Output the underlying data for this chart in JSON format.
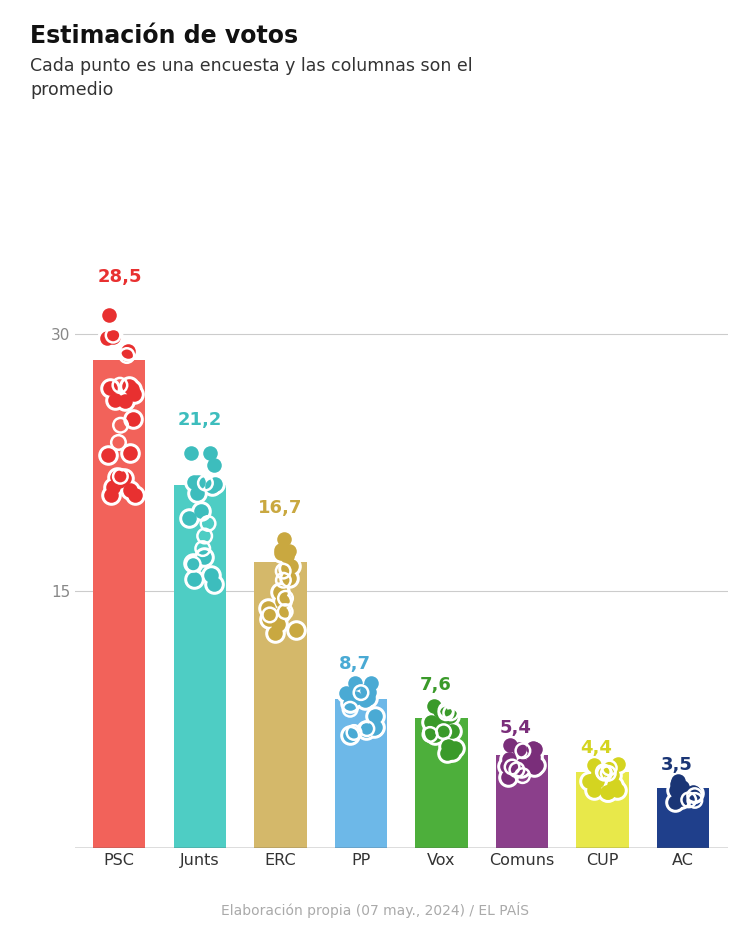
{
  "title": "Estimación de votos",
  "subtitle": "Cada punto es una encuesta y las columnas son el\npromedio",
  "footer": "Elaboración propia (07 may., 2024) / EL PAÍS",
  "categories": [
    "PSC",
    "Junts",
    "ERC",
    "PP",
    "Vox",
    "Comuns",
    "CUP",
    "AC"
  ],
  "values": [
    28.5,
    21.2,
    16.7,
    8.7,
    7.6,
    5.4,
    4.4,
    3.5
  ],
  "bar_colors": [
    "#F2625A",
    "#4ECDC4",
    "#D4B86A",
    "#6DB8E8",
    "#4DAF3B",
    "#8B3F8B",
    "#E8E84A",
    "#1F3F8B"
  ],
  "dot_colors": [
    "#E83030",
    "#3DBDBD",
    "#C9A840",
    "#4AAAD4",
    "#3A9A2A",
    "#7A2E7A",
    "#D4D420",
    "#1A3575"
  ],
  "value_colors": [
    "#E83030",
    "#3DBDBD",
    "#C9A840",
    "#4AAAD4",
    "#3A9A2A",
    "#7A2E7A",
    "#D4D420",
    "#1A3575"
  ],
  "ylim": [
    0,
    33
  ],
  "yticks": [
    15,
    30
  ],
  "background_color": "#FFFFFF",
  "dot_counts": [
    20,
    15,
    17,
    14,
    16,
    14,
    14,
    10
  ]
}
